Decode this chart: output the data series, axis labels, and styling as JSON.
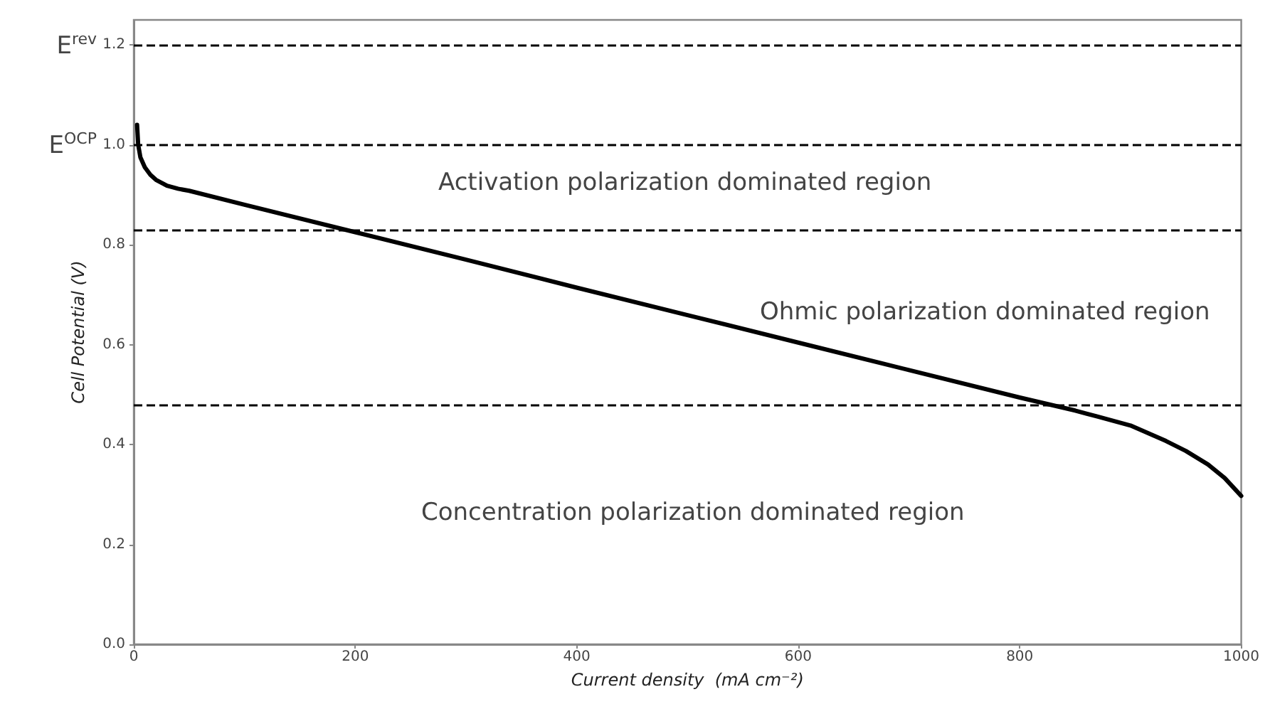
{
  "chart_data": {
    "type": "line",
    "xlabel": "Current density  (mA cm⁻²)",
    "ylabel": "Cell Potential (V)",
    "xlim": [
      0,
      1000
    ],
    "xticks": [
      0,
      200,
      400,
      600,
      800,
      1000
    ],
    "ylim": [
      0,
      1.25
    ],
    "yticks": [
      {
        "value": 0,
        "label": "0.0"
      },
      0.2,
      0.4,
      0.6,
      0.8,
      {
        "value": 1,
        "label": "1.0"
      },
      1.2
    ],
    "grid": false,
    "marker": "none",
    "line_style": "solid",
    "series": [
      {
        "color": "#000000",
        "x": [
          3,
          4,
          6,
          10,
          15,
          20,
          30,
          40,
          50,
          100,
          200,
          300,
          400,
          500,
          600,
          700,
          800,
          850,
          870,
          900,
          932,
          950,
          970,
          985,
          1000
        ],
        "values": [
          1.04,
          1.0,
          0.975,
          0.955,
          0.94,
          0.93,
          0.918,
          0.912,
          0.908,
          0.88,
          0.825,
          0.77,
          0.714,
          0.659,
          0.604,
          0.549,
          0.494,
          0.468,
          0.456,
          0.438,
          0.407,
          0.387,
          0.36,
          0.333,
          0.297
        ]
      }
    ],
    "ref_lines": [
      {
        "axis": "y",
        "value": 1.2,
        "label": "E$^{rev}$",
        "line_style": "dashed",
        "color": "#000000"
      },
      {
        "axis": "y",
        "value": 1.0,
        "label": "E$^{OCP}$",
        "line_style": "dashed",
        "color": "#000000"
      },
      {
        "axis": "y",
        "value": 0.83,
        "label": null,
        "line_style": "dashed",
        "color": "#000000"
      },
      {
        "axis": "y",
        "value": 0.48,
        "label": null,
        "line_style": "dashed",
        "color": "#000000"
      }
    ],
    "annotations": [
      "Activation polarization dominated region",
      "Ohmic polarization dominated region",
      "Concentration polarization dominated region"
    ]
  }
}
